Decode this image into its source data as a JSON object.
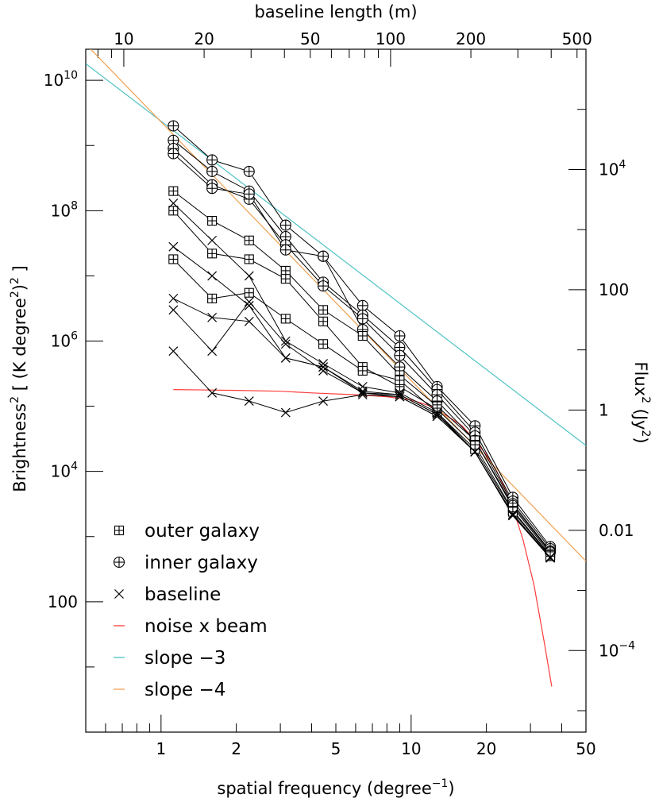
{
  "chart_data": {
    "type": "line",
    "title": "",
    "xlabel": "spatial frequency (degree",
    "xlabel_sup": "−1",
    "xlabel_end": ")",
    "x2label": "baseline length (m)",
    "ylabel": "Brightness",
    "ylabel_sup1": "2",
    "ylabel_mid": " [ (K degree",
    "ylabel_sup2": "2",
    "ylabel_end": ")",
    "ylabel_sup3": "2",
    "ylabel_close": " ]",
    "y2label": "Flux",
    "y2label_sup": "2",
    "y2label_end": " (Jy",
    "y2label_sup2": "2",
    "y2label_close": ")",
    "xscale": "log",
    "yscale": "log",
    "xlim": [
      0.5,
      50
    ],
    "ylim": [
      1,
      30000000000
    ],
    "x_ticks": [
      {
        "v": 1,
        "label": "1"
      },
      {
        "v": 2,
        "label": "2"
      },
      {
        "v": 5,
        "label": "5"
      },
      {
        "v": 10,
        "label": "10"
      },
      {
        "v": 20,
        "label": "20"
      },
      {
        "v": 50,
        "label": "50"
      }
    ],
    "y_ticks": [
      {
        "v": 100,
        "base": "100",
        "exp": ""
      },
      {
        "v": 10000,
        "base": "10",
        "exp": "4"
      },
      {
        "v": 1000000,
        "base": "10",
        "exp": "6"
      },
      {
        "v": 100000000,
        "base": "10",
        "exp": "8"
      },
      {
        "v": 10000000000,
        "base": "10",
        "exp": "10"
      }
    ],
    "top_ticks": [
      {
        "v": 10,
        "label": "10"
      },
      {
        "v": 20,
        "label": "20"
      },
      {
        "v": 50,
        "label": "50"
      },
      {
        "v": 100,
        "label": "100"
      },
      {
        "v": 200,
        "label": "200"
      },
      {
        "v": 500,
        "label": "500"
      }
    ],
    "top_axis_range_m": [
      7.2,
      540
    ],
    "right_ticks": [
      {
        "v": 10000,
        "base": "10",
        "exp": "4"
      },
      {
        "v": 100,
        "base": "100",
        "exp": ""
      },
      {
        "v": 1,
        "base": "1",
        "exp": ""
      },
      {
        "v": 0.01,
        "base": "0.01",
        "exp": ""
      },
      {
        "v": 0.0001,
        "base": "10",
        "exp": "−4"
      }
    ],
    "right_axis_range_Jy2": [
      4.4e-06,
      1000000
    ],
    "legend_position": "bottom-left",
    "legend": [
      {
        "marker": "square-plus",
        "label": "outer galaxy"
      },
      {
        "marker": "circle-plus",
        "label": "inner galaxy"
      },
      {
        "marker": "x",
        "label": "baseline"
      },
      {
        "marker": "line",
        "color": "#ff3b3b",
        "label": "noise x beam"
      },
      {
        "marker": "line",
        "color": "#4fc3c3",
        "label": "slope −3"
      },
      {
        "marker": "line",
        "color": "#f0a050",
        "label": "slope −4"
      }
    ],
    "x": [
      1.12,
      1.6,
      2.25,
      3.15,
      4.45,
      6.4,
      9.0,
      12.7,
      18.0,
      25.5,
      36.0
    ],
    "series": [
      {
        "group": "inner",
        "marker": "circle-plus",
        "values": [
          2000000000,
          600000000,
          400000000,
          60000000,
          20000000,
          3500000,
          1200000,
          200000,
          50000,
          4000,
          700
        ]
      },
      {
        "group": "inner",
        "marker": "circle-plus",
        "values": [
          1200000000,
          400000000,
          200000000,
          40000000,
          8000000,
          2500000,
          800000,
          180000,
          40000,
          3500,
          650
        ]
      },
      {
        "group": "inner",
        "marker": "circle-plus",
        "values": [
          900000000,
          250000000,
          150000000,
          30000000,
          7000000,
          2200000,
          600000,
          150000,
          35000,
          3200,
          600
        ]
      },
      {
        "group": "inner",
        "marker": "circle-plus",
        "values": [
          750000000,
          220000000,
          180000000,
          25000000,
          20000000,
          1500000,
          400000,
          120000,
          30000,
          3000,
          580
        ]
      },
      {
        "group": "outer",
        "marker": "square-plus",
        "values": [
          200000000,
          70000000,
          35000000,
          12000000,
          3000000,
          1200000,
          300000,
          100000,
          30000,
          2800,
          550
        ]
      },
      {
        "group": "outer",
        "marker": "square-plus",
        "values": [
          100000000,
          22000000,
          18000000,
          9000000,
          2000000,
          400000,
          200000,
          90000,
          25000,
          2500,
          520
        ]
      },
      {
        "group": "outer",
        "marker": "square-plus",
        "values": [
          18000000,
          4500000,
          5500000,
          2200000,
          900000,
          350000,
          250000,
          80000,
          22000,
          2400,
          500
        ]
      },
      {
        "group": "baseline",
        "marker": "x",
        "values": [
          130000000,
          35000000,
          10000000,
          1000000,
          450000,
          200000,
          160000,
          80000,
          20000,
          2200,
          480
        ]
      },
      {
        "group": "baseline",
        "marker": "x",
        "values": [
          28000000,
          10000000,
          3500000,
          550000,
          400000,
          170000,
          150000,
          75000,
          20000,
          2200,
          480
        ]
      },
      {
        "group": "baseline",
        "marker": "x",
        "values": [
          3000000,
          700000,
          4000000,
          900000,
          350000,
          160000,
          140000,
          70000,
          20000,
          2100,
          470
        ]
      },
      {
        "group": "baseline",
        "marker": "x",
        "values": [
          700000,
          160000,
          120000,
          80000,
          120000,
          150000,
          140000,
          70000,
          20000,
          2100,
          470
        ]
      },
      {
        "group": "baseline",
        "marker": "x",
        "values": [
          4500000,
          2300000,
          2000000,
          550000,
          400000,
          160000,
          150000,
          75000,
          20000,
          2200,
          480
        ]
      }
    ],
    "lines": [
      {
        "name": "noise x beam",
        "color": "#ff3b3b",
        "x": [
          1.12,
          2,
          3,
          4,
          6,
          8,
          10,
          12,
          14,
          16,
          18,
          20,
          22,
          25,
          28,
          31,
          34,
          36.5
        ],
        "values": [
          180000,
          175000,
          170000,
          160000,
          150000,
          140000,
          125000,
          100000,
          70000,
          50000,
          30000,
          18000,
          10000,
          3500,
          900,
          180,
          25,
          5
        ]
      },
      {
        "name": "slope −3",
        "color": "#4fc3c3",
        "x": [
          0.5,
          50
        ],
        "values": [
          18000000000,
          25000
        ]
      },
      {
        "name": "slope −4",
        "color": "#f0a050",
        "x": [
          0.5,
          50
        ],
        "values": [
          36000000000,
          420
        ]
      }
    ]
  }
}
